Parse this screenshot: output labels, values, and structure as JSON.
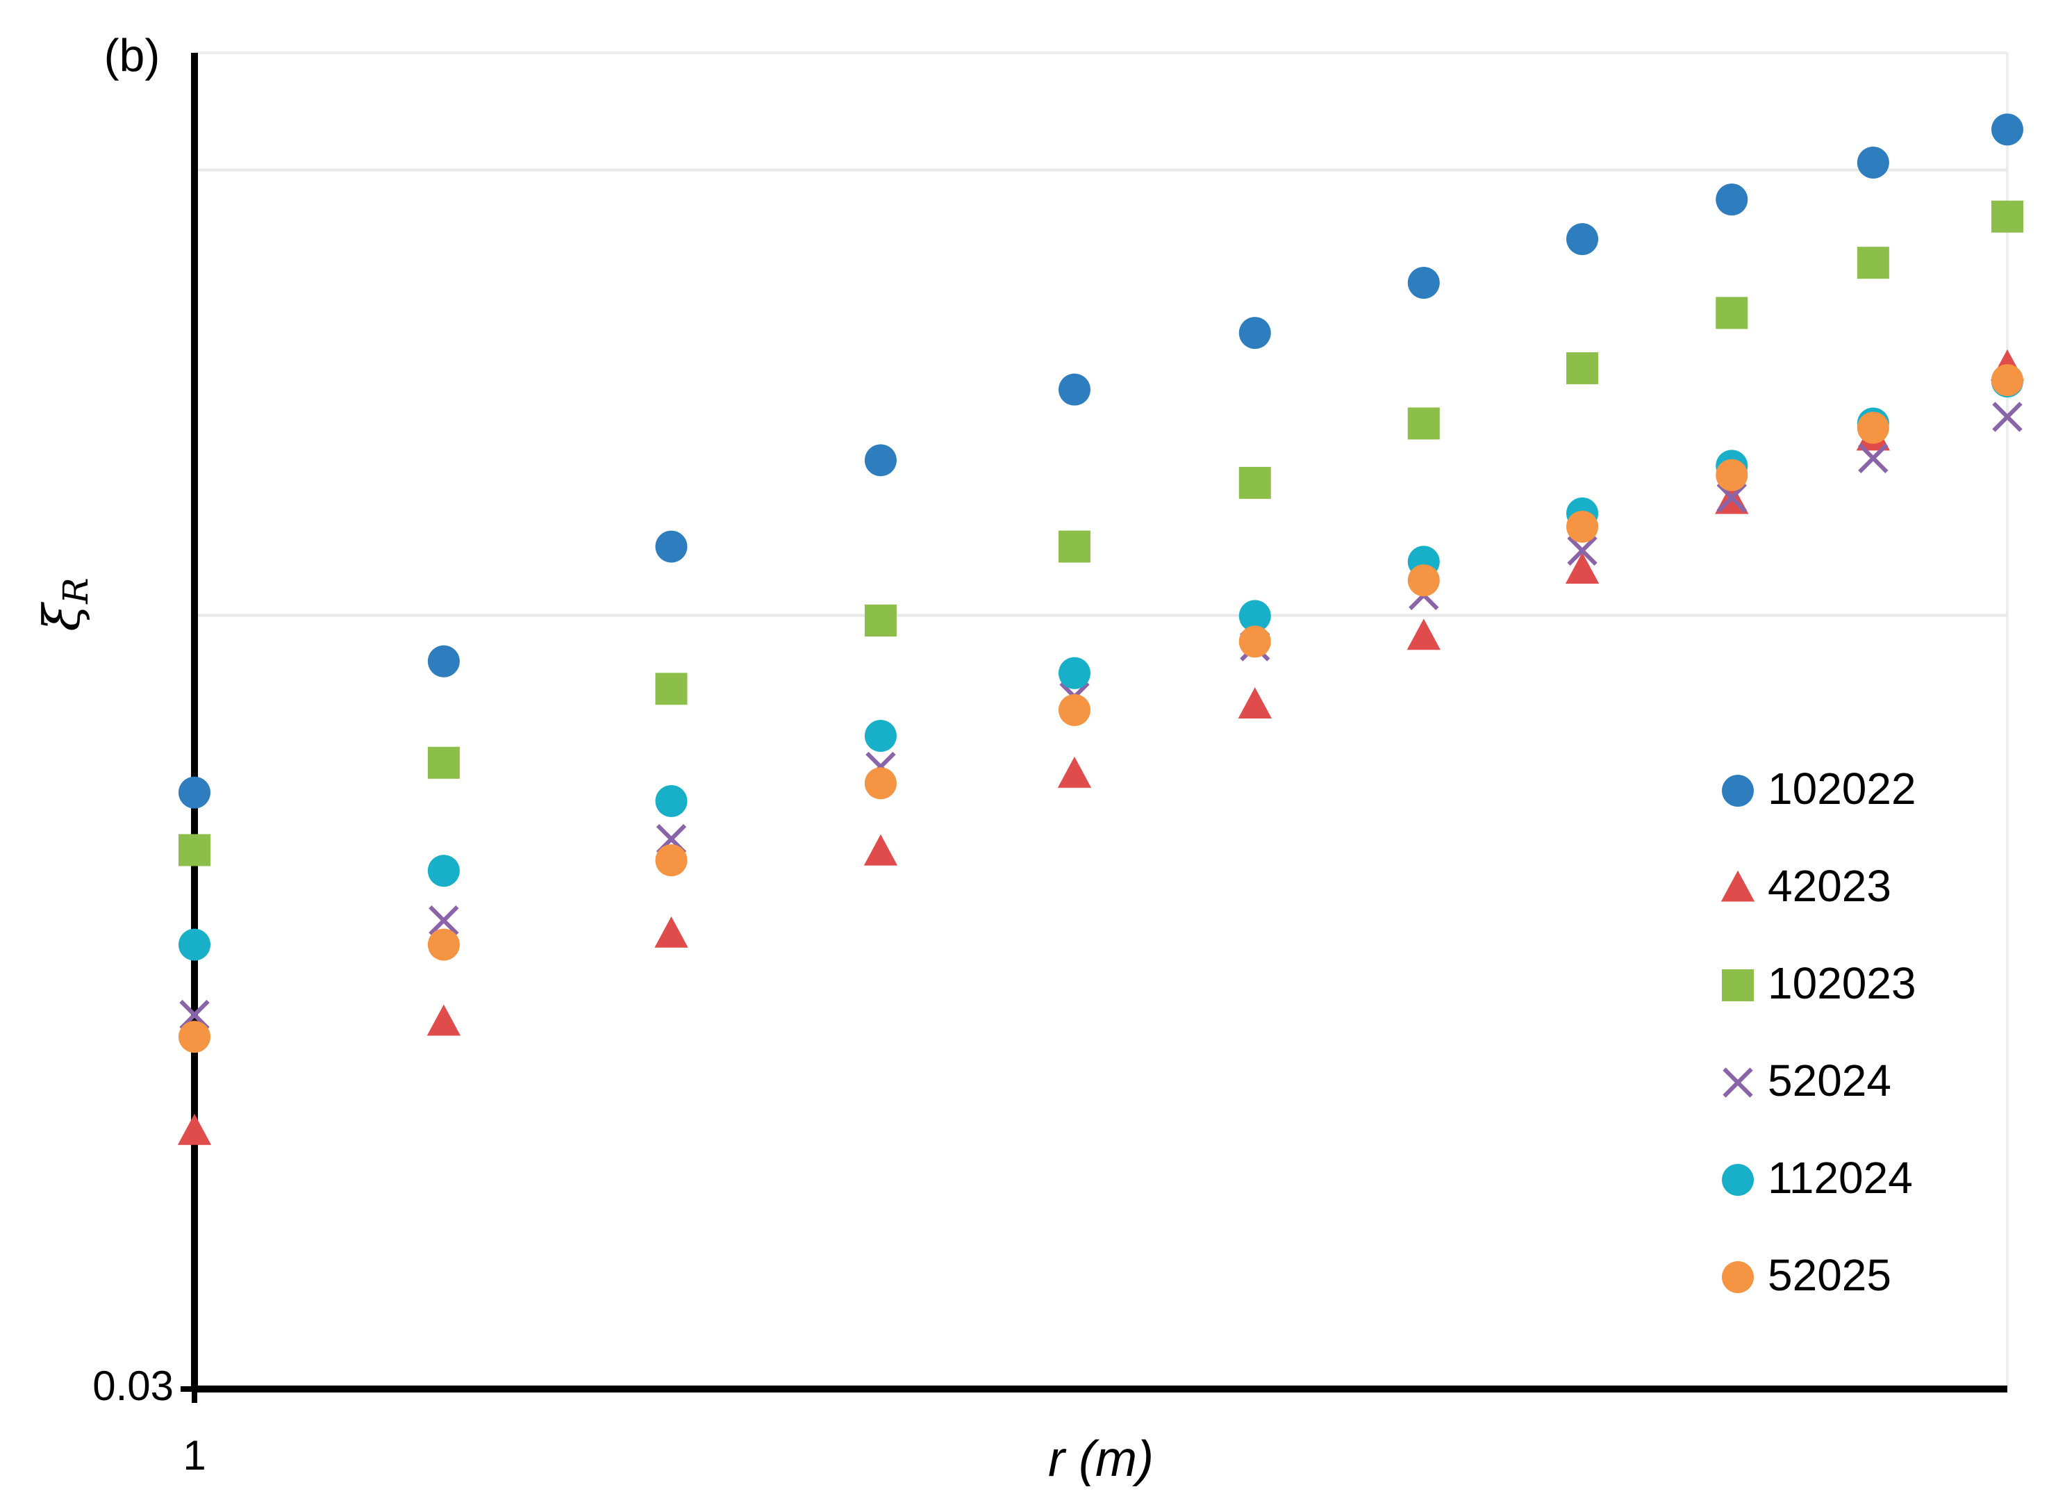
{
  "chart_data": {
    "type": "scatter",
    "annotation": "(b)",
    "xlabel": "r (m)",
    "ylabel": {
      "symbol": "ξ",
      "subscript": "R"
    },
    "xscale": "log",
    "yscale": "log",
    "xlim": [
      1,
      2
    ],
    "ylim": [
      0.03,
      0.24
    ],
    "xticks": [
      1
    ],
    "yticks": [
      0.03
    ],
    "ygrid": [
      0.1,
      0.2
    ],
    "legend": "lower right",
    "x": [
      1,
      1.1,
      1.2,
      1.3,
      1.4,
      1.5,
      1.6,
      1.7,
      1.8,
      1.9,
      2
    ],
    "series": [
      {
        "name": "102022",
        "color": "#2e7ebf",
        "marker": "circle",
        "values": [
          0.0759,
          0.0931,
          0.1113,
          0.1273,
          0.1421,
          0.1552,
          0.1678,
          0.1796,
          0.191,
          0.2023,
          0.213
        ]
      },
      {
        "name": "42023",
        "color": "#e04c4c",
        "marker": "triangle",
        "values": [
          0.0448,
          0.0531,
          0.0609,
          0.0692,
          0.0781,
          0.087,
          0.0968,
          0.1073,
          0.1196,
          0.132,
          0.1472
        ]
      },
      {
        "name": "102023",
        "color": "#8cbf4a",
        "marker": "square",
        "values": [
          0.0694,
          0.0795,
          0.0892,
          0.0992,
          0.1113,
          0.1229,
          0.1348,
          0.1469,
          0.1601,
          0.1731,
          0.186
        ]
      },
      {
        "name": "52024",
        "color": "#8a64a8",
        "marker": "x",
        "values": [
          0.0537,
          0.0622,
          0.0706,
          0.079,
          0.0881,
          0.0953,
          0.1032,
          0.1106,
          0.1201,
          0.1277,
          0.1362
        ]
      },
      {
        "name": "112024",
        "color": "#17b0c8",
        "marker": "circle",
        "values": [
          0.0599,
          0.0672,
          0.0749,
          0.0829,
          0.0914,
          0.0999,
          0.1087,
          0.1172,
          0.1262,
          0.1348,
          0.1439
        ]
      },
      {
        "name": "52025",
        "color": "#f59442",
        "marker": "circle",
        "values": [
          0.0519,
          0.0599,
          0.0683,
          0.077,
          0.0863,
          0.096,
          0.1056,
          0.1148,
          0.1244,
          0.1339,
          0.1442
        ]
      }
    ]
  }
}
